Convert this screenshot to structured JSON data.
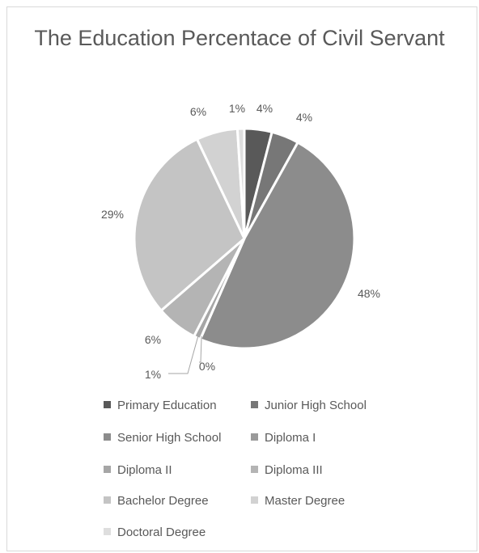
{
  "chart_data": {
    "type": "pie",
    "title": "The Education Percentace of Civil Servant",
    "categories": [
      "Primary Education",
      "Junior High School",
      "Senior High School",
      "Diploma I",
      "Diploma II",
      "Diploma III",
      "Bachelor Degree",
      "Master Degree",
      "Doctoral Degree"
    ],
    "values": [
      4,
      4,
      48,
      0,
      1,
      6,
      29,
      6,
      1
    ],
    "data_labels": [
      "4%",
      "4%",
      "48%",
      "0%",
      "1%",
      "6%",
      "29%",
      "6%",
      "1%"
    ],
    "colors": [
      "#595959",
      "#777777",
      "#8c8c8c",
      "#9a9a9a",
      "#a6a6a6",
      "#b4b4b4",
      "#c4c4c4",
      "#d2d2d2",
      "#dedede"
    ],
    "legend_labels": [
      "Primary Education",
      "Junior High School",
      "Senior High School",
      "Diploma I",
      "Diploma II",
      "Diploma III",
      "Bachelor Degree",
      "Master Degree",
      "Doctoral Degree"
    ],
    "legend_position": "bottom"
  }
}
